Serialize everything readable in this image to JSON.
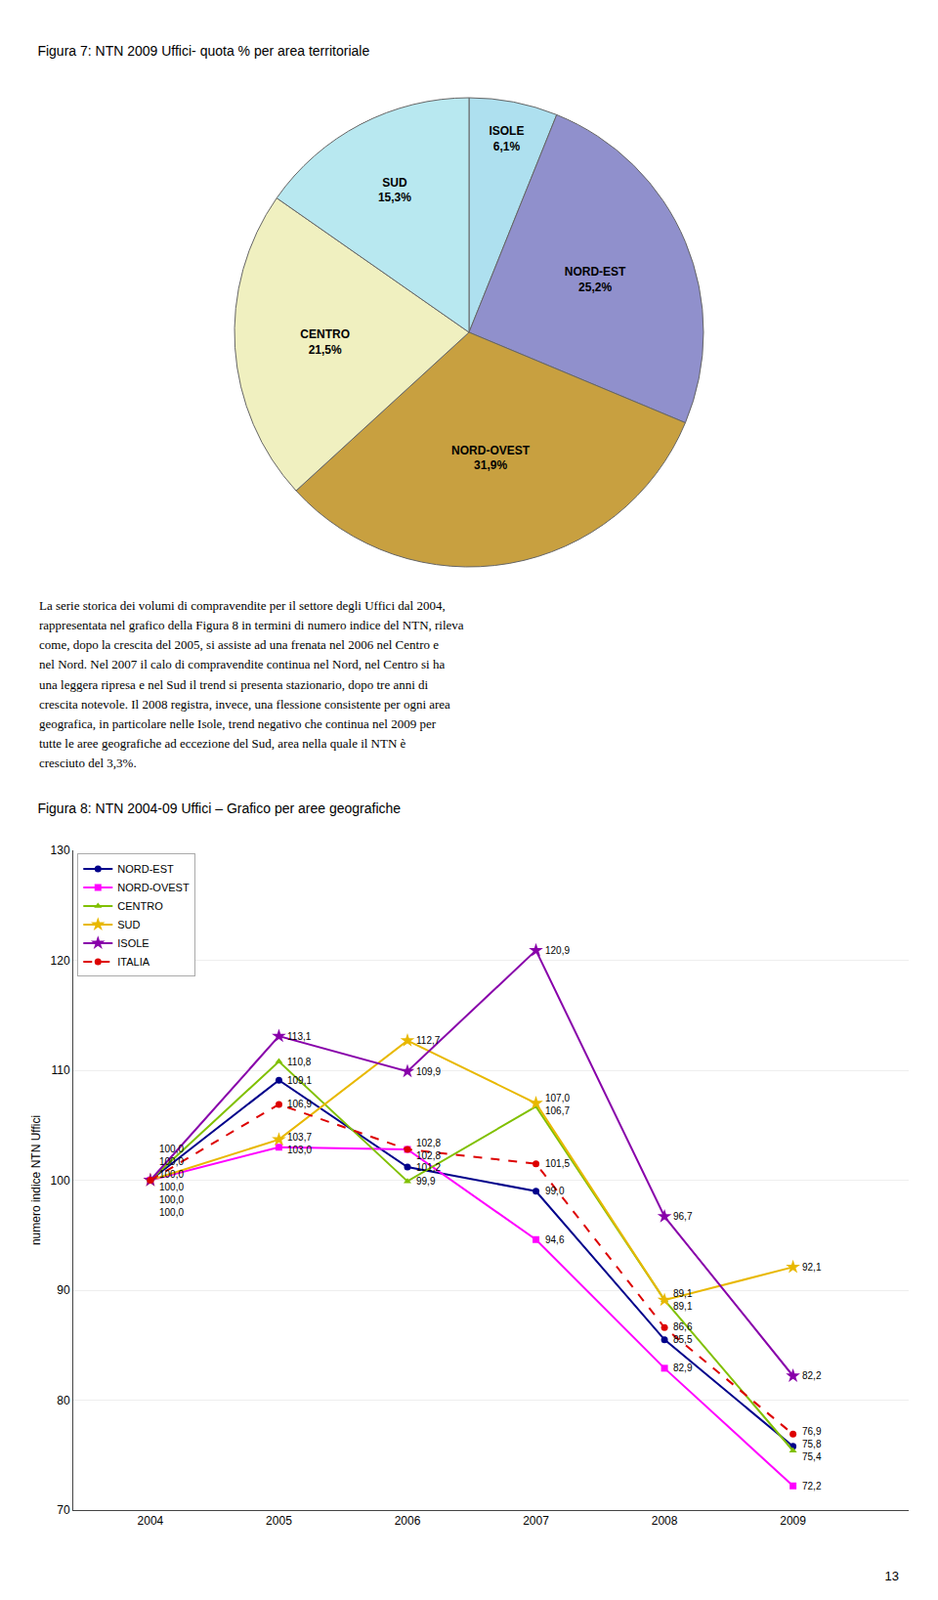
{
  "chart_data": [
    {
      "type": "pie",
      "title": "Figura 7: NTN 2009 Uffici- quota % per area territoriale",
      "categories": [
        "ISOLE",
        "NORD-EST",
        "NORD-OVEST",
        "CENTRO",
        "SUD"
      ],
      "values": [
        6.1,
        25.2,
        31.9,
        21.5,
        15.3
      ],
      "value_labels": [
        "6,1%",
        "25,2%",
        "31,9%",
        "21,5%",
        "15,3%"
      ],
      "colors": [
        "#aee0ef",
        "#9090cc",
        "#c8a040",
        "#f0f0c0",
        "#b8e8f0"
      ],
      "data_labels": true,
      "annotations": [
        "La serie storica dei volumi di compravendite per il settore degli Uffici dal 2004,\nrappresentata nel grafico della Figura 8 in termini di numero indice del NTN, rileva\ncome, dopo la crescita del 2005, si assiste ad una frenata nel 2006 nel Centro e\nnel Nord. Nel 2007 il calo di compravendite continua nel Nord, nel Centro si ha\nuna leggera ripresa e nel Sud il trend si presenta stazionario, dopo tre anni di\ncrescita notevole. Il 2008 registra, invece, una flessione consistente per ogni area\ngeografica, in particolare nelle Isole, trend negativo che continua nel 2009 per\ntutte le aree geografiche ad eccezione del Sud, area nella quale il NTN è\ncresciuto del 3,3%."
      ]
    },
    {
      "type": "line",
      "title": "Figura 8: NTN 2004-09 Uffici – Grafico per aree geografiche",
      "y_label": "numero indice NTN Uffici",
      "x": [
        2004,
        2005,
        2006,
        2007,
        2008,
        2009
      ],
      "xlim": [
        2003.4,
        2009.9
      ],
      "xticks": [
        2004,
        2005,
        2006,
        2007,
        2008,
        2009
      ],
      "ylim": [
        70,
        130
      ],
      "yticks": [
        70,
        80,
        90,
        100,
        110,
        120,
        130
      ],
      "grid": "y",
      "legend": "upper left",
      "data_labels": true,
      "annotations": [
        "13"
      ],
      "series": [
        {
          "name": "NORD-EST",
          "color": "#00008B",
          "marker": "circle",
          "line_style": "solid",
          "values": [
            100.0,
            109.1,
            101.2,
            99.0,
            85.5,
            75.8
          ],
          "value_labels": [
            "100,0",
            "109,1",
            "101,2",
            "99,0",
            "85,5",
            "75,8"
          ]
        },
        {
          "name": "NORD-OVEST",
          "color": "#FF00FF",
          "marker": "square",
          "line_style": "solid",
          "values": [
            100.0,
            103.0,
            102.8,
            94.6,
            82.9,
            72.2
          ],
          "value_labels": [
            "100,0",
            "103,0",
            "102,8",
            "94,6",
            "82,9",
            "72,2"
          ]
        },
        {
          "name": "CENTRO",
          "color": "#80C000",
          "marker": "triangle",
          "line_style": "solid",
          "values": [
            100.0,
            110.8,
            99.9,
            106.7,
            89.1,
            75.4
          ],
          "value_labels": [
            "100,0",
            "110,8",
            "99,9",
            "106,7",
            "89,1",
            "75,4"
          ]
        },
        {
          "name": "SUD",
          "color": "#E8B800",
          "marker": "star",
          "line_style": "solid",
          "values": [
            100.0,
            103.7,
            112.7,
            107.0,
            89.1,
            92.1
          ],
          "value_labels": [
            "100,0",
            "103,7",
            "112,7",
            "107,0",
            "89,1",
            "92,1"
          ]
        },
        {
          "name": "ISOLE",
          "color": "#8800AA",
          "marker": "star",
          "line_style": "solid",
          "values": [
            100.0,
            113.1,
            109.9,
            120.9,
            96.7,
            82.2
          ],
          "value_labels": [
            "100,0",
            "113,1",
            "109,9",
            "120,9",
            "96,7",
            "82,2"
          ]
        },
        {
          "name": "ITALIA",
          "color": "#DD0000",
          "marker": "circle",
          "line_style": "dashed",
          "values": [
            100.0,
            106.9,
            102.8,
            101.5,
            86.6,
            76.9
          ],
          "value_labels": [
            "100,0",
            "106,9",
            "102,8",
            "101,5",
            "86,6",
            "76,9"
          ]
        }
      ]
    }
  ]
}
